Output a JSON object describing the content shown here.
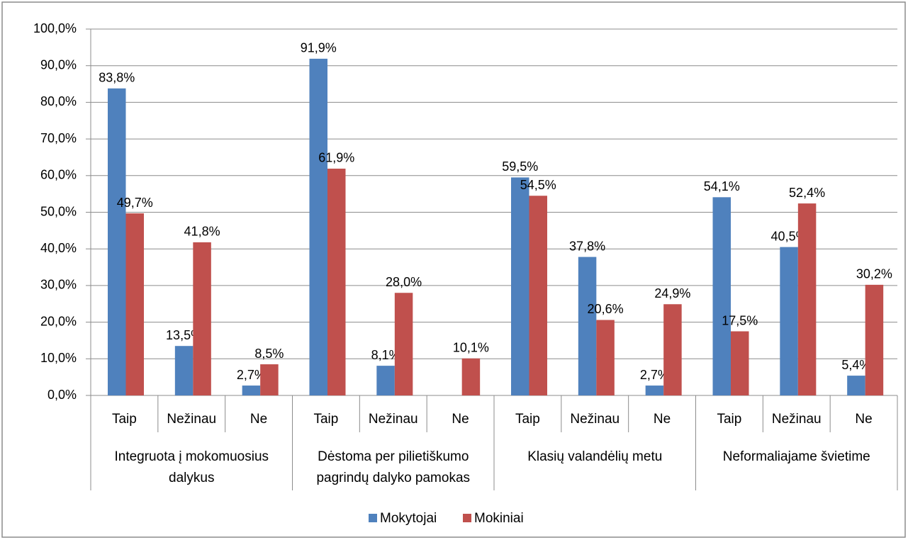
{
  "chart_data": {
    "type": "bar",
    "categories": [
      "Taip",
      "Nežinau",
      "Ne",
      "Taip",
      "Nežinau",
      "Ne",
      "Taip",
      "Nežinau",
      "Ne",
      "Taip",
      "Nežinau",
      "Ne"
    ],
    "groups": [
      "Integruota į mokomuosius dalykus",
      "Dėstoma per pilietiškumo pagrindų dalyko pamokas",
      "Klasių valandėlių metu",
      "Neformaliajame švietime"
    ],
    "series": [
      {
        "name": "Mokytojai",
        "color": "#4f81bd",
        "values": [
          83.8,
          13.5,
          2.7,
          91.9,
          8.1,
          null,
          59.5,
          37.8,
          2.7,
          54.1,
          40.5,
          5.4
        ],
        "value_labels": [
          "83,8%",
          "13,5%",
          "2,7%",
          "91,9%",
          "8,1%",
          null,
          "59,5%",
          "37,8%",
          "2,7%",
          "54,1%",
          "40,5%",
          "5,4%"
        ]
      },
      {
        "name": "Mokiniai",
        "color": "#c0504d",
        "values": [
          49.7,
          41.8,
          8.5,
          61.9,
          28.0,
          10.1,
          54.5,
          20.6,
          24.9,
          17.5,
          52.4,
          30.2
        ],
        "value_labels": [
          "49,7%",
          "41,8%",
          "8,5%",
          "61,9%",
          "28,0%",
          "10,1%",
          "54,5%",
          "20,6%",
          "24,9%",
          "17,5%",
          "52,4%",
          "30,2%"
        ]
      }
    ],
    "ylim": [
      0,
      100
    ],
    "yticks": [
      {
        "value": 0,
        "label": "0,0%"
      },
      {
        "value": 10,
        "label": "10,0%"
      },
      {
        "value": 20,
        "label": "20,0%"
      },
      {
        "value": 30,
        "label": "30,0%"
      },
      {
        "value": 40,
        "label": "40,0%"
      },
      {
        "value": 50,
        "label": "50,0%"
      },
      {
        "value": 60,
        "label": "60,0%"
      },
      {
        "value": 70,
        "label": "70,0%"
      },
      {
        "value": 80,
        "label": "80,0%"
      },
      {
        "value": 90,
        "label": "90,0%"
      },
      {
        "value": 100,
        "label": "100,0%"
      }
    ],
    "grid": true,
    "legend": "bottom"
  }
}
